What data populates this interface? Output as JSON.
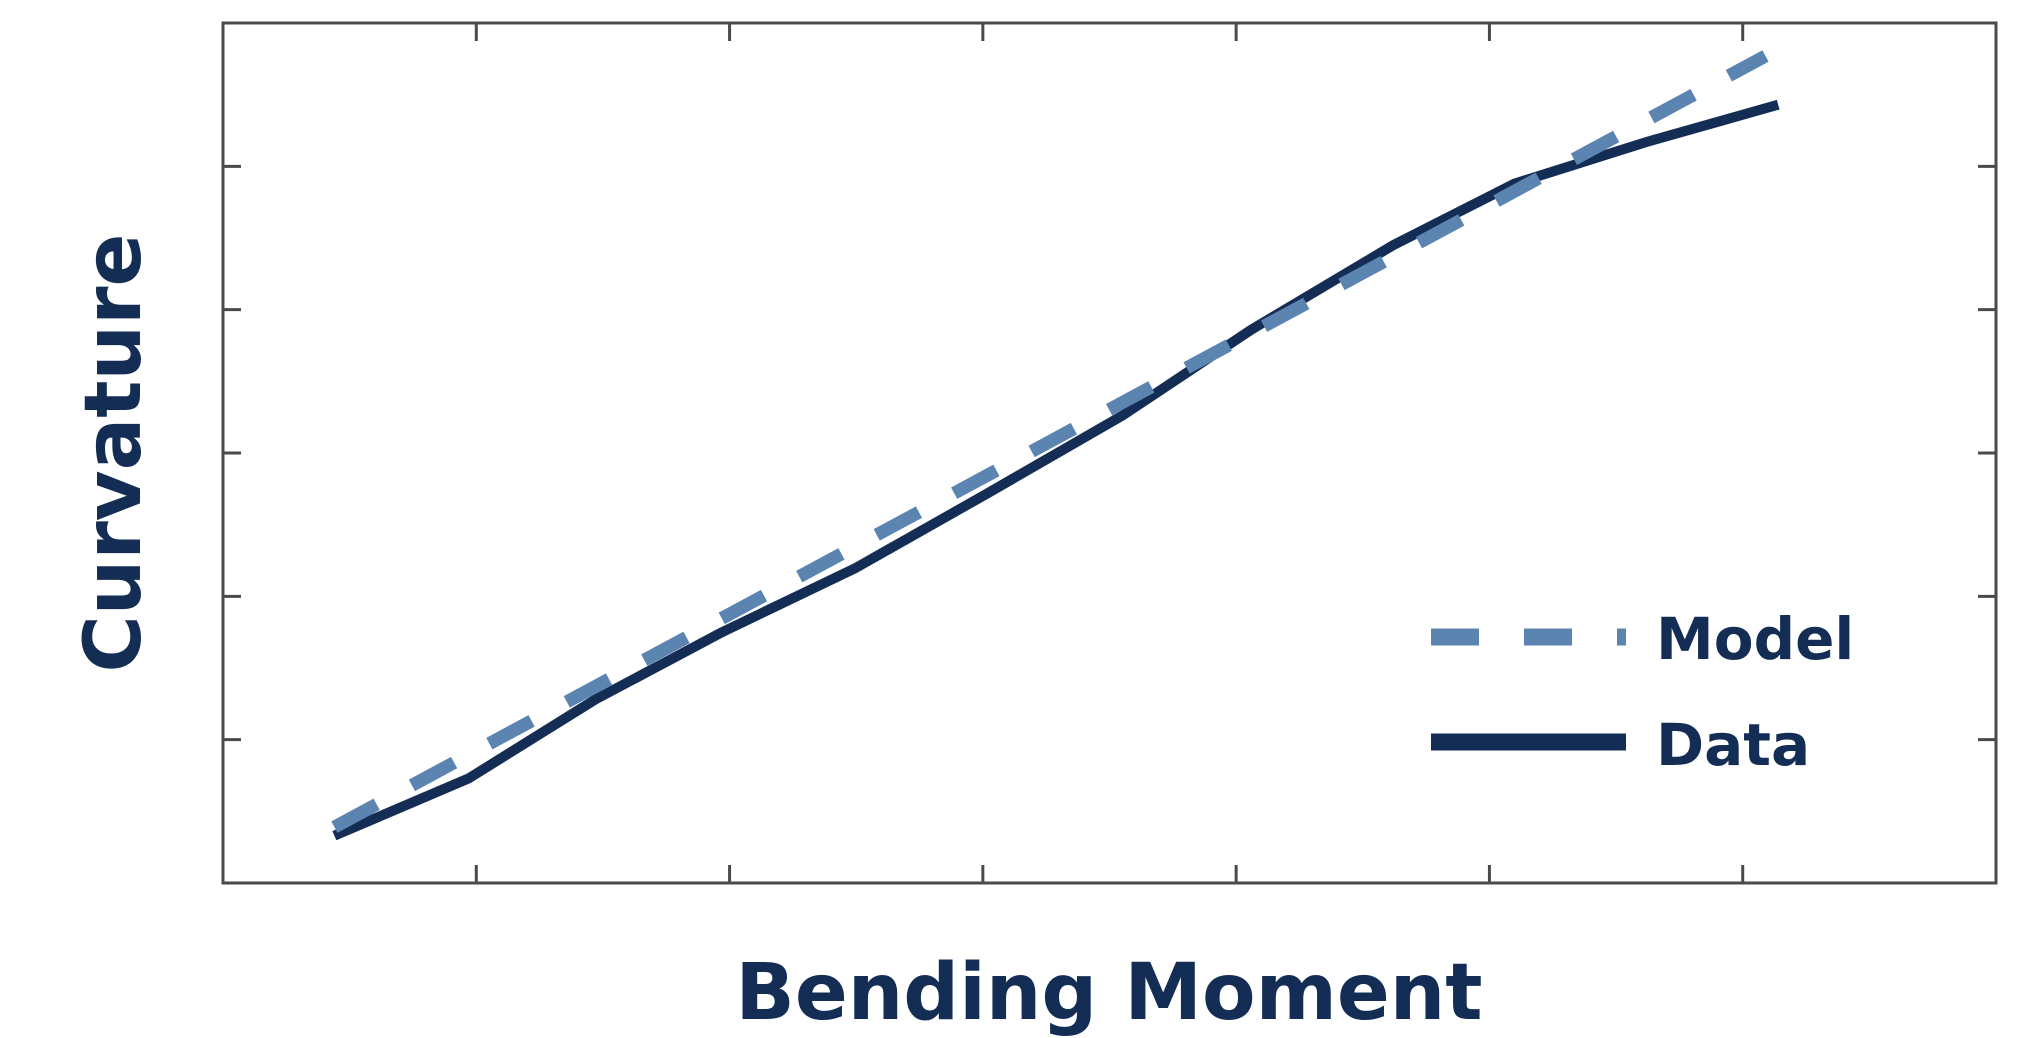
{
  "chart_data": {
    "type": "line",
    "title": "",
    "xlabel": "Bending Moment",
    "ylabel": "Curvature",
    "tick_labels_shown": false,
    "x_ticks": [
      1,
      2,
      3,
      4,
      5,
      6
    ],
    "y_ticks": [
      1,
      2,
      3,
      4,
      5
    ],
    "xlim": [
      0,
      7
    ],
    "ylim": [
      0,
      6
    ],
    "grid": false,
    "legend_position": "lower-right",
    "series": [
      {
        "name": "Model",
        "style": "dashed",
        "color": "#5b84b1",
        "x": [
          0.44,
          6.09
        ],
        "y": [
          0.39,
          5.77
        ]
      },
      {
        "name": "Data",
        "style": "solid",
        "color": "#142d55",
        "x": [
          0.44,
          0.97,
          1.47,
          1.97,
          2.5,
          3.02,
          3.55,
          4.06,
          4.62,
          5.1,
          5.62,
          6.14
        ],
        "y": [
          0.33,
          0.73,
          1.28,
          1.75,
          2.2,
          2.72,
          3.26,
          3.86,
          4.45,
          4.88,
          5.17,
          5.43
        ]
      }
    ]
  }
}
